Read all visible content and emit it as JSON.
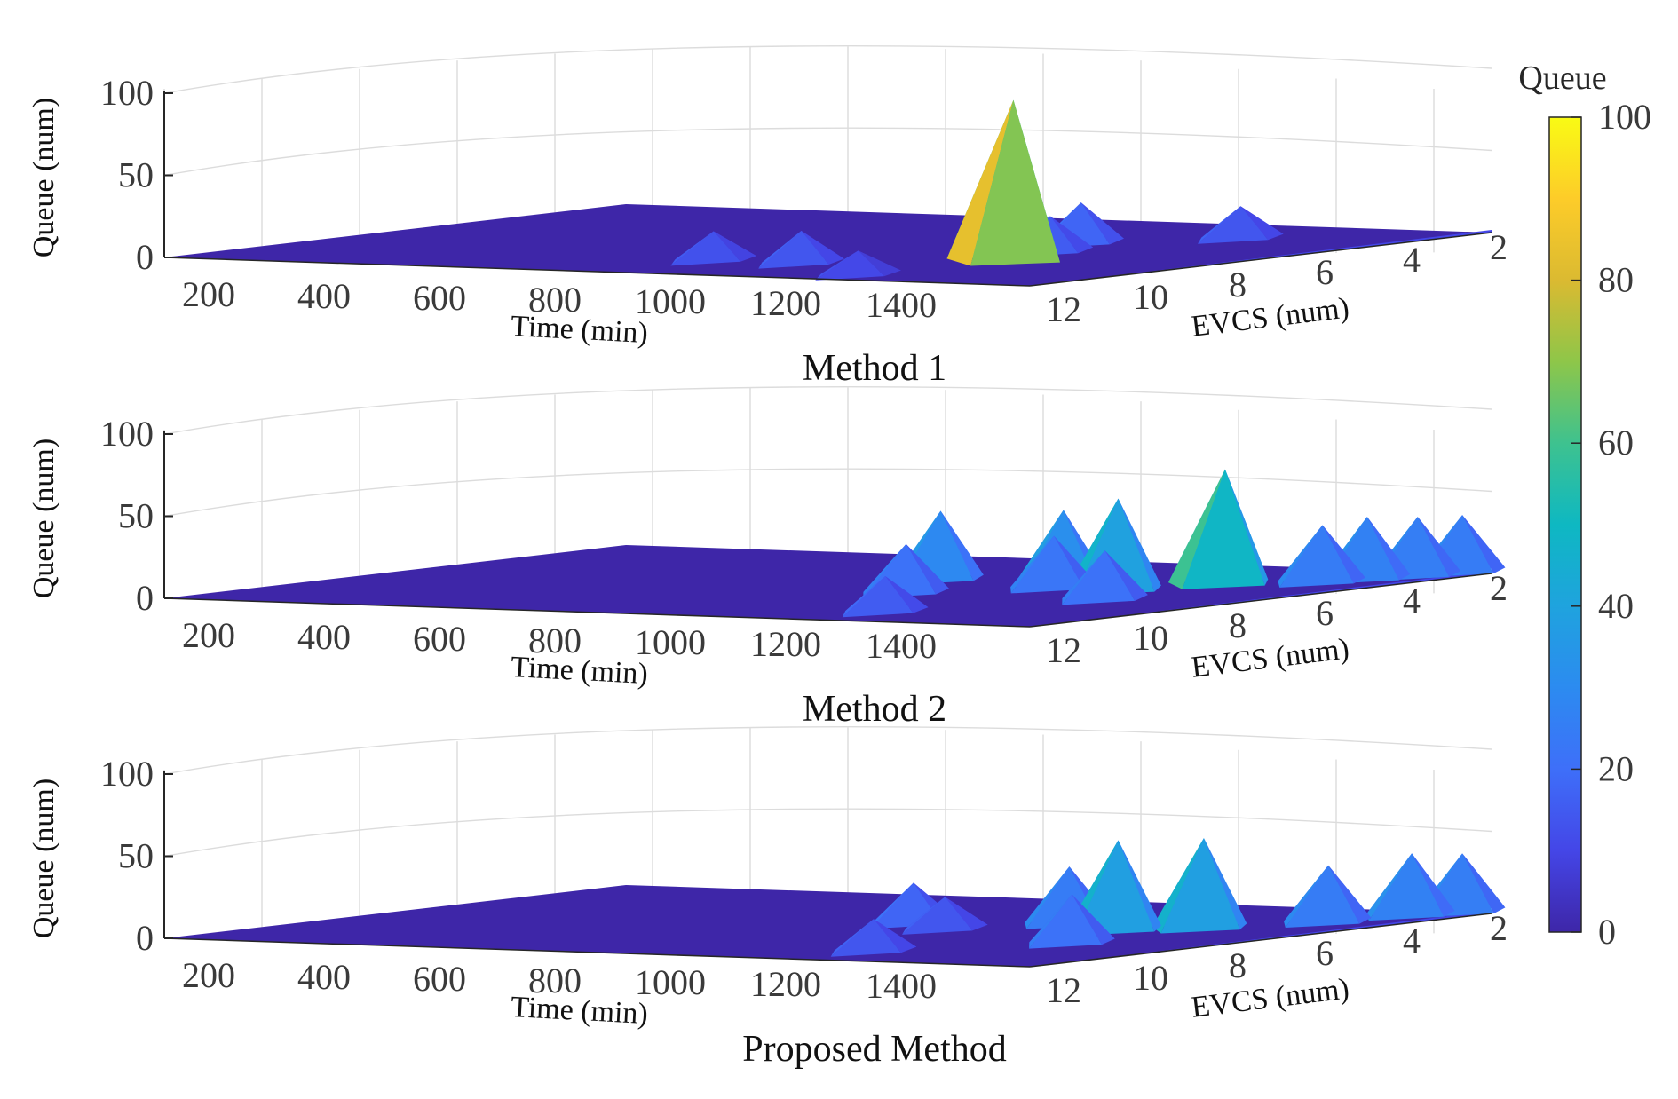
{
  "figure": {
    "colorbar": {
      "title": "Queue",
      "ticks": [
        "100",
        "80",
        "60",
        "40",
        "20",
        "0"
      ],
      "min": 0,
      "max": 100
    },
    "colormap": [
      "#3e26a8",
      "#4446e7",
      "#3e6ff9",
      "#2c8bf0",
      "#1fa3de",
      "#0eb8c2",
      "#3ec28f",
      "#8ec649",
      "#dbba31",
      "#fdcc29",
      "#f9fb14"
    ],
    "surface_base_color": "#3e26a8"
  },
  "chart_data": [
    {
      "type": "surface3d",
      "title": "Method 1",
      "zlabel": "Queue (num)",
      "xlabel": "Time (min)",
      "ylabel": "EVCS (num)",
      "zlim": [
        0,
        100
      ],
      "z_ticks": [
        "100",
        "50",
        "0"
      ],
      "time_ticks": [
        "200",
        "400",
        "600",
        "800",
        "1000",
        "1200",
        "1400"
      ],
      "evcs_ticks": [
        "12",
        "10",
        "8",
        "6",
        "4",
        "2"
      ],
      "peaks": [
        {
          "time": 1140,
          "evcs": 6,
          "queue": 35
        },
        {
          "time": 1240,
          "evcs": 7,
          "queue": 22
        },
        {
          "time": 890,
          "evcs": 11,
          "queue": 18
        },
        {
          "time": 1040,
          "evcs": 11,
          "queue": 20
        },
        {
          "time": 1180,
          "evcs": 5,
          "queue": 25
        },
        {
          "time": 1290,
          "evcs": 9,
          "queue": 98
        },
        {
          "time": 1340,
          "evcs": 3,
          "queue": 20
        },
        {
          "time": 1250,
          "evcs": 13,
          "queue": 15
        }
      ]
    },
    {
      "type": "surface3d",
      "title": "Method 2",
      "zlabel": "Queue (num)",
      "xlabel": "Time (min)",
      "ylabel": "EVCS (num)",
      "zlim": [
        0,
        100
      ],
      "z_ticks": [
        "100",
        "50",
        "0"
      ],
      "time_ticks": [
        "200",
        "400",
        "600",
        "800",
        "1000",
        "1200",
        "1400"
      ],
      "evcs_ticks": [
        "12",
        "10",
        "8",
        "6",
        "4",
        "2"
      ],
      "peaks": [
        {
          "time": 940,
          "evcs": 5,
          "queue": 42
        },
        {
          "time": 1050,
          "evcs": 8,
          "queue": 30
        },
        {
          "time": 1150,
          "evcs": 5,
          "queue": 45
        },
        {
          "time": 1190,
          "evcs": 6,
          "queue": 32
        },
        {
          "time": 1300,
          "evcs": 6,
          "queue": 56
        },
        {
          "time": 1370,
          "evcs": 4,
          "queue": 70
        },
        {
          "time": 1390,
          "evcs": 8,
          "queue": 30
        },
        {
          "time": 1240,
          "evcs": 12,
          "queue": 22
        },
        {
          "time": 1480,
          "evcs": 3,
          "queue": 35
        },
        {
          "time": 1500,
          "evcs": 2,
          "queue": 38
        },
        {
          "time": 1530,
          "evcs": 1,
          "queue": 36
        },
        {
          "time": 1550,
          "evcs": 0,
          "queue": 35
        }
      ]
    },
    {
      "type": "surface3d",
      "title": "Proposed Method",
      "zlabel": "Queue (num)",
      "xlabel": "Time (min)",
      "ylabel": "EVCS (num)",
      "zlim": [
        0,
        100
      ],
      "z_ticks": [
        "100",
        "50",
        "0"
      ],
      "time_ticks": [
        "200",
        "400",
        "600",
        "800",
        "1000",
        "1200",
        "1400"
      ],
      "evcs_ticks": [
        "12",
        "10",
        "8",
        "6",
        "4",
        "2"
      ],
      "peaks": [
        {
          "time": 950,
          "evcs": 6,
          "queue": 25
        },
        {
          "time": 1060,
          "evcs": 7,
          "queue": 20
        },
        {
          "time": 1160,
          "evcs": 5,
          "queue": 35
        },
        {
          "time": 1300,
          "evcs": 6,
          "queue": 55
        },
        {
          "time": 1390,
          "evcs": 5,
          "queue": 55
        },
        {
          "time": 1390,
          "evcs": 9,
          "queue": 30
        },
        {
          "time": 1220,
          "evcs": 12,
          "queue": 20
        },
        {
          "time": 1490,
          "evcs": 3,
          "queue": 35
        },
        {
          "time": 1520,
          "evcs": 1,
          "queue": 38
        },
        {
          "time": 1550,
          "evcs": 0,
          "queue": 36
        }
      ]
    }
  ]
}
